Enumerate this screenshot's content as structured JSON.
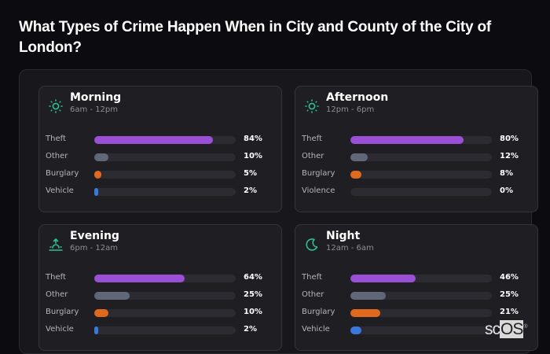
{
  "title": "What Types of Crime Happen When in City and County of the City of London?",
  "colors": {
    "Theft": "#9a4fd6",
    "Other": "#5f6778",
    "Burglary": "#e0691e",
    "Vehicle": "#3a78de",
    "Violence": "#c0392b",
    "icon": "#2fbf94"
  },
  "cards": [
    {
      "name": "Morning",
      "range": "6am - 12pm",
      "icon": "sun-icon",
      "rows": [
        {
          "label": "Theft",
          "value": 84,
          "pct": "84%"
        },
        {
          "label": "Other",
          "value": 10,
          "pct": "10%"
        },
        {
          "label": "Burglary",
          "value": 5,
          "pct": "5%"
        },
        {
          "label": "Vehicle",
          "value": 2,
          "pct": "2%"
        }
      ]
    },
    {
      "name": "Afternoon",
      "range": "12pm - 6pm",
      "icon": "sun-icon",
      "rows": [
        {
          "label": "Theft",
          "value": 80,
          "pct": "80%"
        },
        {
          "label": "Other",
          "value": 12,
          "pct": "12%"
        },
        {
          "label": "Burglary",
          "value": 8,
          "pct": "8%"
        },
        {
          "label": "Violence",
          "value": 0,
          "pct": "0%"
        }
      ]
    },
    {
      "name": "Evening",
      "range": "6pm - 12am",
      "icon": "sunset-icon",
      "rows": [
        {
          "label": "Theft",
          "value": 64,
          "pct": "64%"
        },
        {
          "label": "Other",
          "value": 25,
          "pct": "25%"
        },
        {
          "label": "Burglary",
          "value": 10,
          "pct": "10%"
        },
        {
          "label": "Vehicle",
          "value": 2,
          "pct": "2%"
        }
      ]
    },
    {
      "name": "Night",
      "range": "12am - 6am",
      "icon": "moon-icon",
      "rows": [
        {
          "label": "Theft",
          "value": 46,
          "pct": "46%"
        },
        {
          "label": "Other",
          "value": 25,
          "pct": "25%"
        },
        {
          "label": "Burglary",
          "value": 21,
          "pct": "21%"
        },
        {
          "label": "Vehicle",
          "value": 8,
          "pct": "8%"
        }
      ]
    }
  ],
  "watermark": {
    "text_a": "sc",
    "text_b": "OS",
    "mark": "®"
  },
  "chart_data": {
    "type": "bar",
    "title": "What Types of Crime Happen When in City and County of the City of London?",
    "orientation": "horizontal",
    "xlim": [
      0,
      100
    ],
    "unit": "%",
    "panels": [
      {
        "name": "Morning",
        "subtitle": "6am - 12pm",
        "categories": [
          "Theft",
          "Other",
          "Burglary",
          "Vehicle"
        ],
        "values": [
          84,
          10,
          5,
          2
        ]
      },
      {
        "name": "Afternoon",
        "subtitle": "12pm - 6pm",
        "categories": [
          "Theft",
          "Other",
          "Burglary",
          "Violence"
        ],
        "values": [
          80,
          12,
          8,
          0
        ]
      },
      {
        "name": "Evening",
        "subtitle": "6pm - 12am",
        "categories": [
          "Theft",
          "Other",
          "Burglary",
          "Vehicle"
        ],
        "values": [
          64,
          25,
          10,
          2
        ]
      },
      {
        "name": "Night",
        "subtitle": "12am - 6am",
        "categories": [
          "Theft",
          "Other",
          "Burglary",
          "Vehicle"
        ],
        "values": [
          46,
          25,
          21,
          8
        ]
      }
    ]
  }
}
